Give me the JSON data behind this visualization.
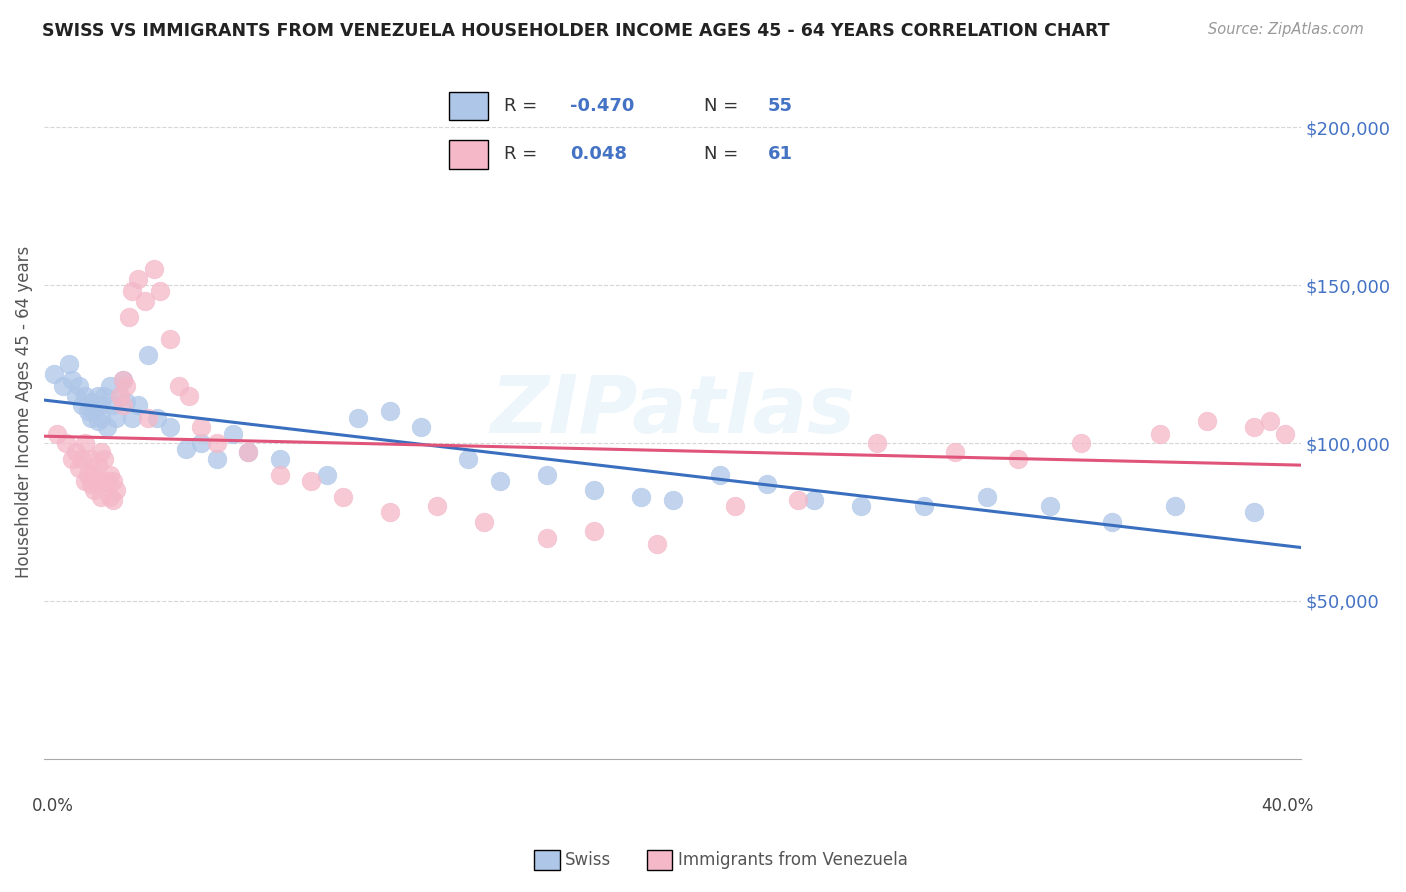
{
  "title": "SWISS VS IMMIGRANTS FROM VENEZUELA HOUSEHOLDER INCOME AGES 45 - 64 YEARS CORRELATION CHART",
  "source": "Source: ZipAtlas.com",
  "ylabel": "Householder Income Ages 45 - 64 years",
  "watermark": "ZIPatlas",
  "swiss_R": "-0.470",
  "swiss_N": "55",
  "ven_R": "0.048",
  "ven_N": "61",
  "y_ticks": [
    50000,
    100000,
    150000,
    200000
  ],
  "y_tick_labels": [
    "$50,000",
    "$100,000",
    "$150,000",
    "$200,000"
  ],
  "xlim": [
    0.0,
    0.4
  ],
  "ylim": [
    0,
    220000
  ],
  "blue_color": "#aec6e8",
  "pink_color": "#f4b8c8",
  "blue_line_color": "#3a6fbf",
  "pink_line_color": "#e0547a",
  "title_color": "#333333",
  "value_color": "#4472c4",
  "swiss_x": [
    0.003,
    0.006,
    0.008,
    0.009,
    0.01,
    0.011,
    0.012,
    0.013,
    0.014,
    0.015,
    0.015,
    0.016,
    0.017,
    0.017,
    0.018,
    0.018,
    0.019,
    0.02,
    0.021,
    0.022,
    0.023,
    0.024,
    0.025,
    0.026,
    0.028,
    0.03,
    0.033,
    0.036,
    0.04,
    0.045,
    0.05,
    0.055,
    0.06,
    0.065,
    0.075,
    0.09,
    0.1,
    0.11,
    0.12,
    0.135,
    0.145,
    0.16,
    0.175,
    0.19,
    0.2,
    0.215,
    0.23,
    0.245,
    0.26,
    0.28,
    0.3,
    0.32,
    0.34,
    0.36,
    0.385
  ],
  "swiss_y": [
    122000,
    118000,
    125000,
    120000,
    115000,
    118000,
    112000,
    115000,
    110000,
    113000,
    108000,
    110000,
    107000,
    115000,
    112000,
    108000,
    115000,
    105000,
    118000,
    112000,
    108000,
    115000,
    120000,
    113000,
    108000,
    112000,
    128000,
    108000,
    105000,
    98000,
    100000,
    95000,
    103000,
    97000,
    95000,
    90000,
    108000,
    110000,
    105000,
    95000,
    88000,
    90000,
    85000,
    83000,
    82000,
    90000,
    87000,
    82000,
    80000,
    80000,
    83000,
    80000,
    75000,
    80000,
    78000
  ],
  "ven_x": [
    0.004,
    0.007,
    0.009,
    0.01,
    0.011,
    0.012,
    0.013,
    0.013,
    0.014,
    0.015,
    0.015,
    0.016,
    0.016,
    0.017,
    0.017,
    0.018,
    0.018,
    0.019,
    0.02,
    0.021,
    0.021,
    0.022,
    0.022,
    0.023,
    0.024,
    0.025,
    0.025,
    0.026,
    0.027,
    0.028,
    0.03,
    0.032,
    0.033,
    0.035,
    0.037,
    0.04,
    0.043,
    0.046,
    0.05,
    0.055,
    0.065,
    0.075,
    0.085,
    0.095,
    0.11,
    0.125,
    0.14,
    0.16,
    0.175,
    0.195,
    0.22,
    0.24,
    0.265,
    0.29,
    0.31,
    0.33,
    0.355,
    0.37,
    0.385,
    0.39,
    0.395
  ],
  "ven_y": [
    103000,
    100000,
    95000,
    97000,
    92000,
    95000,
    88000,
    100000,
    90000,
    87000,
    95000,
    90000,
    85000,
    93000,
    88000,
    97000,
    83000,
    95000,
    88000,
    90000,
    83000,
    88000,
    82000,
    85000,
    115000,
    120000,
    112000,
    118000,
    140000,
    148000,
    152000,
    145000,
    108000,
    155000,
    148000,
    133000,
    118000,
    115000,
    105000,
    100000,
    97000,
    90000,
    88000,
    83000,
    78000,
    80000,
    75000,
    70000,
    72000,
    68000,
    80000,
    82000,
    100000,
    97000,
    95000,
    100000,
    103000,
    107000,
    105000,
    107000,
    103000
  ]
}
